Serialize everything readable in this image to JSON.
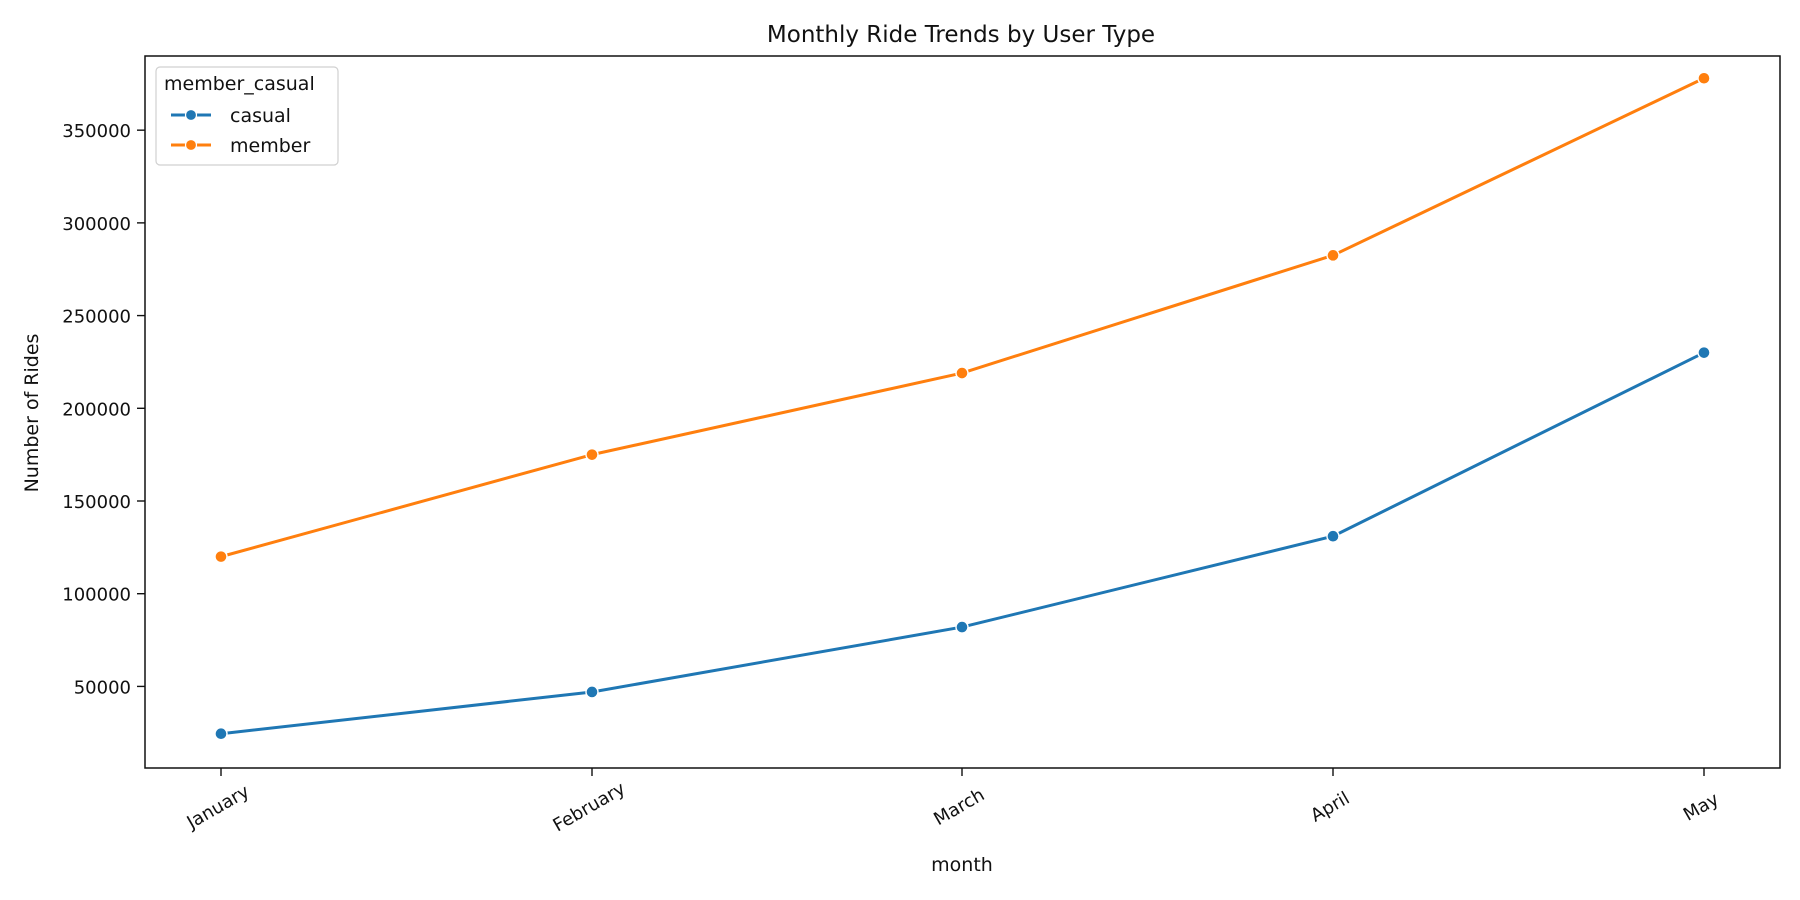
{
  "chart_data": {
    "type": "line",
    "title": "Monthly Ride Trends by User Type",
    "xlabel": "month",
    "ylabel": "Number of Rides",
    "categories": [
      "January",
      "February",
      "March",
      "April",
      "May"
    ],
    "series": [
      {
        "name": "casual",
        "values": [
          24500,
          47000,
          82000,
          131000,
          230000
        ],
        "color": "#1f77b4"
      },
      {
        "name": "member",
        "values": [
          120000,
          175000,
          219000,
          282500,
          378000
        ],
        "color": "#ff7f0e"
      }
    ],
    "ylim": [
      6000,
      390000
    ],
    "yticks": [
      50000,
      100000,
      150000,
      200000,
      250000,
      300000,
      350000
    ],
    "legend": {
      "title": "member_casual",
      "placement": "top-left"
    },
    "grid": false,
    "marker": "circle"
  }
}
